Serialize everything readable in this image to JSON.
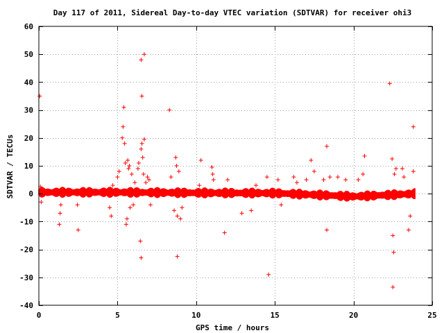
{
  "chart_data": {
    "type": "scatter",
    "title": "Day 117 of 2011, Sidereal Day-to-day VTEC variation (SDTVAR) for receiver ohi3",
    "xlabel": "GPS time / hours",
    "ylabel": "SDTVAR / TECUs",
    "xlim": [
      0,
      25
    ],
    "ylim": [
      -40,
      60
    ],
    "x_ticks": [
      0,
      5,
      10,
      15,
      20,
      25
    ],
    "y_ticks": [
      -40,
      -30,
      -20,
      -10,
      0,
      10,
      20,
      30,
      40,
      50,
      60
    ],
    "x_tick_labels": [
      "0",
      "5",
      "10",
      "15",
      "20",
      "25"
    ],
    "y_tick_labels": [
      "-40",
      "-30",
      "-20",
      "-10",
      "0",
      "10",
      "20",
      "30",
      "40",
      "50",
      "60"
    ],
    "grid": true,
    "legend": "none",
    "marker": "+",
    "color": "#ff0000",
    "band": {
      "x_start": 0.0,
      "x_end": 23.9,
      "y_center": [
        [
          0,
          0.5
        ],
        [
          5,
          0.5
        ],
        [
          10,
          0.3
        ],
        [
          15,
          0.2
        ],
        [
          18,
          -0.5
        ],
        [
          20,
          -1.0
        ],
        [
          22,
          -0.5
        ],
        [
          23.9,
          0.0
        ]
      ],
      "half_width": 1.5
    },
    "points": [
      {
        "x": 0.05,
        "y": 35
      },
      {
        "x": 0.1,
        "y": 2.5
      },
      {
        "x": 0.15,
        "y": -3
      },
      {
        "x": 1.3,
        "y": -11
      },
      {
        "x": 1.35,
        "y": -7
      },
      {
        "x": 1.4,
        "y": -4
      },
      {
        "x": 2.5,
        "y": -13
      },
      {
        "x": 2.45,
        "y": -4
      },
      {
        "x": 4.6,
        "y": -8
      },
      {
        "x": 4.5,
        "y": -5
      },
      {
        "x": 4.7,
        "y": 3
      },
      {
        "x": 5.0,
        "y": 6
      },
      {
        "x": 5.1,
        "y": 8
      },
      {
        "x": 5.3,
        "y": 20
      },
      {
        "x": 5.35,
        "y": 24
      },
      {
        "x": 5.4,
        "y": 31
      },
      {
        "x": 5.45,
        "y": 18
      },
      {
        "x": 5.5,
        "y": 11
      },
      {
        "x": 5.55,
        "y": -11
      },
      {
        "x": 5.6,
        "y": -9
      },
      {
        "x": 5.65,
        "y": 12
      },
      {
        "x": 5.7,
        "y": 9
      },
      {
        "x": 5.75,
        "y": 10
      },
      {
        "x": 5.8,
        "y": -5
      },
      {
        "x": 5.9,
        "y": 7
      },
      {
        "x": 6.0,
        "y": -4
      },
      {
        "x": 6.1,
        "y": 4
      },
      {
        "x": 6.3,
        "y": 9
      },
      {
        "x": 6.35,
        "y": 11
      },
      {
        "x": 6.45,
        "y": -17
      },
      {
        "x": 6.5,
        "y": -23
      },
      {
        "x": 6.5,
        "y": 48
      },
      {
        "x": 6.55,
        "y": 35
      },
      {
        "x": 6.5,
        "y": 16
      },
      {
        "x": 6.55,
        "y": 18
      },
      {
        "x": 6.7,
        "y": 50
      },
      {
        "x": 6.7,
        "y": 19.5
      },
      {
        "x": 6.6,
        "y": 13
      },
      {
        "x": 6.65,
        "y": 7
      },
      {
        "x": 6.8,
        "y": 4
      },
      {
        "x": 6.9,
        "y": 6
      },
      {
        "x": 7.0,
        "y": 5
      },
      {
        "x": 7.1,
        "y": -4
      },
      {
        "x": 8.3,
        "y": 30
      },
      {
        "x": 8.4,
        "y": 6
      },
      {
        "x": 8.6,
        "y": -6
      },
      {
        "x": 8.7,
        "y": 13
      },
      {
        "x": 8.75,
        "y": 10
      },
      {
        "x": 8.8,
        "y": -22.5
      },
      {
        "x": 8.8,
        "y": -8
      },
      {
        "x": 8.9,
        "y": 8
      },
      {
        "x": 9.0,
        "y": -9
      },
      {
        "x": 9.1,
        "y": -5
      },
      {
        "x": 10.3,
        "y": 12
      },
      {
        "x": 10.2,
        "y": 3
      },
      {
        "x": 11.0,
        "y": 9.5
      },
      {
        "x": 11.05,
        "y": 7
      },
      {
        "x": 11.1,
        "y": 5
      },
      {
        "x": 11.8,
        "y": -14
      },
      {
        "x": 12.0,
        "y": 5
      },
      {
        "x": 12.9,
        "y": -7
      },
      {
        "x": 13.5,
        "y": -6
      },
      {
        "x": 13.8,
        "y": 3
      },
      {
        "x": 14.5,
        "y": 6
      },
      {
        "x": 14.6,
        "y": -29
      },
      {
        "x": 15.2,
        "y": 5
      },
      {
        "x": 15.4,
        "y": -4
      },
      {
        "x": 16.2,
        "y": 6
      },
      {
        "x": 16.4,
        "y": 4
      },
      {
        "x": 17.0,
        "y": 5
      },
      {
        "x": 17.3,
        "y": 12
      },
      {
        "x": 17.5,
        "y": 8
      },
      {
        "x": 18.1,
        "y": 5
      },
      {
        "x": 18.3,
        "y": 17
      },
      {
        "x": 18.3,
        "y": -13
      },
      {
        "x": 18.5,
        "y": 6
      },
      {
        "x": 19.0,
        "y": 6
      },
      {
        "x": 19.5,
        "y": 5
      },
      {
        "x": 20.3,
        "y": 5
      },
      {
        "x": 20.7,
        "y": 13.5
      },
      {
        "x": 20.6,
        "y": 7
      },
      {
        "x": 22.3,
        "y": 39.5
      },
      {
        "x": 22.45,
        "y": 12.5
      },
      {
        "x": 22.5,
        "y": -15
      },
      {
        "x": 22.55,
        "y": -21
      },
      {
        "x": 22.5,
        "y": -33.5
      },
      {
        "x": 22.6,
        "y": 7
      },
      {
        "x": 22.7,
        "y": 9
      },
      {
        "x": 23.1,
        "y": 9
      },
      {
        "x": 23.2,
        "y": 6
      },
      {
        "x": 23.5,
        "y": -13
      },
      {
        "x": 23.6,
        "y": -8
      },
      {
        "x": 23.8,
        "y": 24
      },
      {
        "x": 23.8,
        "y": 8
      }
    ]
  }
}
